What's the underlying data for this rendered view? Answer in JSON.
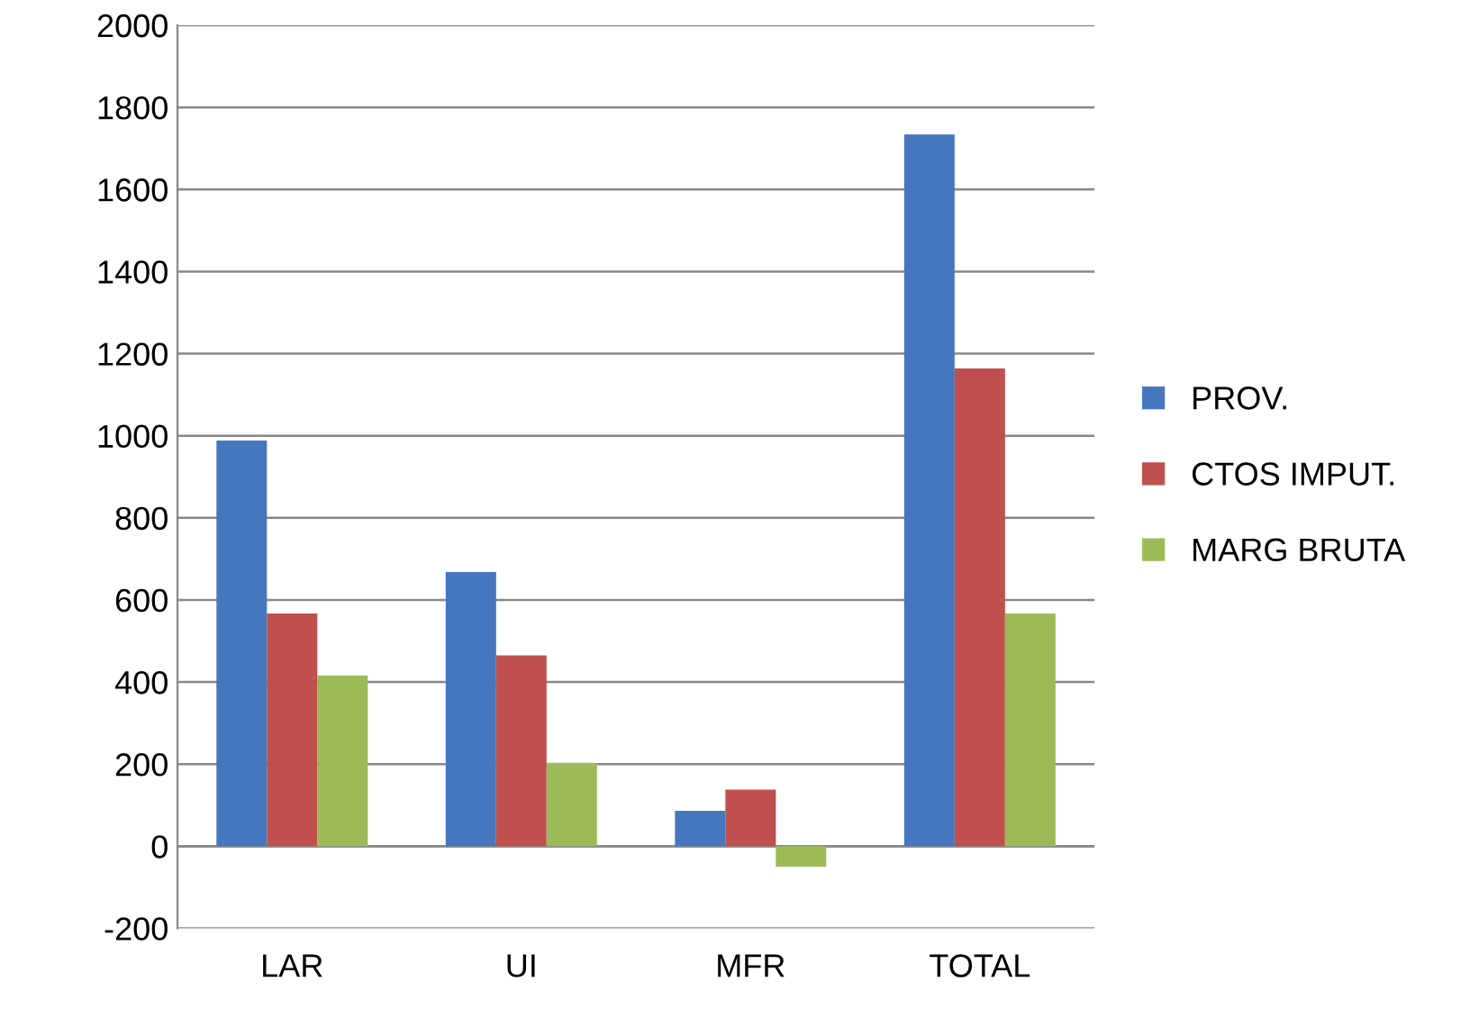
{
  "chart_data": {
    "type": "bar",
    "categories": [
      "LAR",
      "UI",
      "MFR",
      "TOTAL"
    ],
    "series": [
      {
        "name": "PROV.",
        "color": "#4677be",
        "values": [
          988,
          668,
          86,
          1734
        ]
      },
      {
        "name": "CTOS IMPUT.",
        "color": "#c0504d",
        "values": [
          567,
          465,
          138,
          1164
        ]
      },
      {
        "name": "MARG BRUTA",
        "color": "#9bbb59",
        "values": [
          416,
          203,
          -50,
          567
        ]
      }
    ],
    "ylim": [
      -200,
      2000
    ],
    "yticks": [
      -200,
      0,
      200,
      400,
      600,
      800,
      1000,
      1200,
      1400,
      1600,
      1800,
      2000
    ],
    "grid": "y",
    "legend": "right"
  }
}
